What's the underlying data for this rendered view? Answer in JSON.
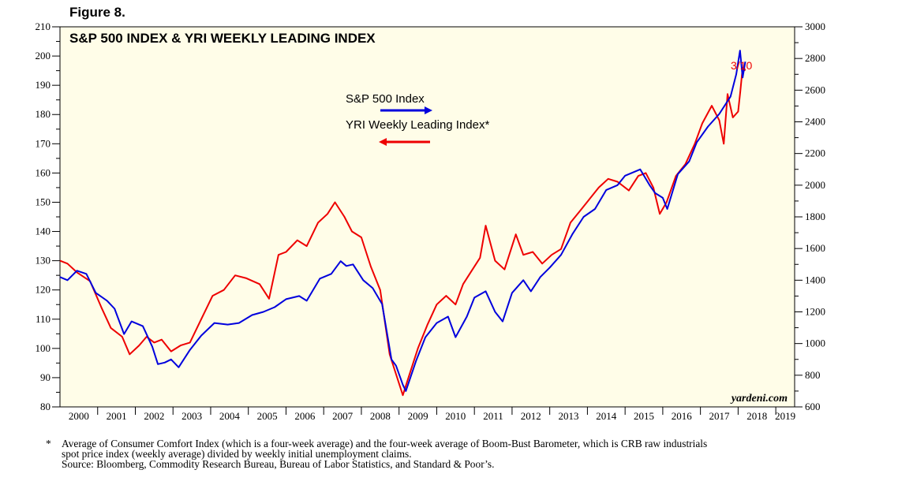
{
  "figure_label": "Figure 8.",
  "footnote": {
    "marker": "*",
    "line1": "Average of Consumer Comfort Index (which is a four-week average) and the four-week average of Boom-Bust Barometer, which is CRB raw industrials",
    "line2": "spot price index (weekly average) divided by weekly initial unemployment claims.",
    "line3": "Source: Bloomberg, Commodity Research Bureau, Bureau of Labor Statistics, and Standard & Poor’s."
  },
  "colors": {
    "plot_background": "#fffde8",
    "sp500": "#0000dd",
    "yri": "#ee0000"
  },
  "chart_data": {
    "type": "line",
    "title": "S&P 500 INDEX & YRI WEEKLY LEADING INDEX",
    "watermark": "yardeni.com",
    "end_label": "3/10",
    "legend": {
      "placement": "center",
      "entries": [
        "S&P 500 Index",
        "YRI Weekly Leading Index*"
      ]
    },
    "xlim": [
      2000,
      2019.5
    ],
    "x_tick_labels": [
      "2000",
      "2001",
      "2002",
      "2003",
      "2004",
      "2005",
      "2006",
      "2007",
      "2008",
      "2009",
      "2010",
      "2011",
      "2012",
      "2013",
      "2014",
      "2015",
      "2016",
      "2017",
      "2018",
      "2019"
    ],
    "left_axis": {
      "ylim": [
        80,
        210
      ],
      "ticks": [
        "80",
        "90",
        "100",
        "110",
        "120",
        "130",
        "140",
        "150",
        "160",
        "170",
        "180",
        "190",
        "200",
        "210"
      ]
    },
    "right_axis": {
      "ylim": [
        600,
        3000
      ],
      "ticks": [
        "600",
        "800",
        "1000",
        "1200",
        "1400",
        "1600",
        "1800",
        "2000",
        "2200",
        "2400",
        "2600",
        "2800",
        "3000"
      ]
    },
    "series": [
      {
        "name": "S&P 500 Index",
        "axis": "right",
        "x": [
          2000.0,
          2000.2,
          2000.45,
          2000.7,
          2000.95,
          2001.25,
          2001.45,
          2001.7,
          2001.9,
          2002.2,
          2002.45,
          2002.6,
          2002.78,
          2002.95,
          2003.15,
          2003.45,
          2003.75,
          2004.1,
          2004.45,
          2004.75,
          2005.1,
          2005.4,
          2005.7,
          2006.0,
          2006.35,
          2006.55,
          2006.9,
          2007.2,
          2007.45,
          2007.6,
          2007.78,
          2008.05,
          2008.3,
          2008.55,
          2008.8,
          2008.92,
          2009.1,
          2009.18,
          2009.45,
          2009.7,
          2010.0,
          2010.3,
          2010.5,
          2010.8,
          2011.0,
          2011.3,
          2011.55,
          2011.75,
          2012.0,
          2012.3,
          2012.5,
          2012.75,
          2013.0,
          2013.3,
          2013.6,
          2013.9,
          2014.2,
          2014.5,
          2014.8,
          2015.0,
          2015.4,
          2015.65,
          2015.8,
          2016.0,
          2016.12,
          2016.4,
          2016.7,
          2016.9,
          2017.2,
          2017.5,
          2017.8,
          2017.95,
          2018.05,
          2018.12,
          2018.19
        ],
        "y": [
          1420,
          1400,
          1460,
          1440,
          1320,
          1270,
          1220,
          1060,
          1140,
          1110,
          980,
          870,
          880,
          900,
          850,
          960,
          1050,
          1130,
          1120,
          1130,
          1180,
          1200,
          1230,
          1280,
          1300,
          1270,
          1410,
          1440,
          1520,
          1490,
          1500,
          1400,
          1350,
          1250,
          900,
          860,
          740,
          700,
          890,
          1040,
          1130,
          1170,
          1040,
          1170,
          1290,
          1330,
          1200,
          1140,
          1320,
          1400,
          1330,
          1420,
          1480,
          1560,
          1690,
          1800,
          1850,
          1970,
          2000,
          2060,
          2100,
          2000,
          1950,
          1920,
          1850,
          2070,
          2150,
          2270,
          2370,
          2450,
          2560,
          2700,
          2850,
          2680,
          2780
        ]
      },
      {
        "name": "YRI Weekly Leading Index*",
        "axis": "left",
        "x": [
          2000.0,
          2000.2,
          2000.45,
          2000.8,
          2001.1,
          2001.35,
          2001.65,
          2001.85,
          2002.1,
          2002.3,
          2002.5,
          2002.7,
          2002.95,
          2003.2,
          2003.45,
          2003.75,
          2004.05,
          2004.35,
          2004.65,
          2004.95,
          2005.3,
          2005.55,
          2005.8,
          2006.0,
          2006.3,
          2006.55,
          2006.85,
          2007.1,
          2007.3,
          2007.55,
          2007.75,
          2008.0,
          2008.25,
          2008.5,
          2008.75,
          2008.9,
          2009.1,
          2009.25,
          2009.5,
          2009.75,
          2010.0,
          2010.25,
          2010.5,
          2010.7,
          2010.9,
          2011.15,
          2011.3,
          2011.55,
          2011.8,
          2012.1,
          2012.3,
          2012.55,
          2012.8,
          2013.05,
          2013.3,
          2013.55,
          2013.8,
          2014.05,
          2014.3,
          2014.55,
          2014.8,
          2015.1,
          2015.35,
          2015.55,
          2015.75,
          2015.92,
          2016.1,
          2016.35,
          2016.6,
          2016.85,
          2017.05,
          2017.3,
          2017.5,
          2017.62,
          2017.72,
          2017.86,
          2018.0,
          2018.06,
          2018.12,
          2018.19
        ],
        "y": [
          130,
          129,
          126,
          123,
          114,
          107,
          104,
          98,
          101,
          104,
          102,
          103,
          99,
          101,
          102,
          110,
          118,
          120,
          125,
          124,
          122,
          117,
          132,
          133,
          137,
          135,
          143,
          146,
          150,
          145,
          140,
          138,
          128,
          120,
          98,
          92,
          84,
          90,
          100,
          108,
          115,
          118,
          115,
          122,
          126,
          131,
          142,
          130,
          127,
          139,
          132,
          133,
          129,
          132,
          134,
          143,
          147,
          151,
          155,
          158,
          157,
          154,
          159,
          160,
          155,
          146,
          150,
          159,
          163,
          170,
          177,
          183,
          178,
          170,
          187,
          179,
          181,
          188,
          196,
          195
        ]
      }
    ]
  }
}
